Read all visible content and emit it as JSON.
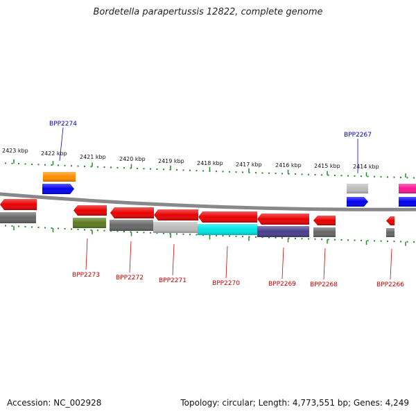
{
  "title": "Bordetella parapertussis 12822, complete genome",
  "footer": {
    "accession": "Accession: NC_002928",
    "summary": "Topology: circular; Length: 4,773,551 bp; Genes: 4,249"
  },
  "scale": {
    "labels": [
      "2423 kbp",
      "2422 kbp",
      "2421 kbp",
      "2420 kbp",
      "2419 kbp",
      "2418 kbp",
      "2417 kbp",
      "2416 kbp",
      "2415 kbp",
      "2414 kbp"
    ]
  },
  "genes": {
    "top": [
      {
        "name": "BPP2274",
        "color": "#0000cc"
      },
      {
        "name": "BPP2267",
        "color": "#0000cc"
      }
    ],
    "bottom": [
      {
        "name": "BPP2273",
        "color": "#cc0000"
      },
      {
        "name": "BPP2272",
        "color": "#cc0000"
      },
      {
        "name": "BPP2271",
        "color": "#cc0000"
      },
      {
        "name": "BPP2270",
        "color": "#cc0000"
      },
      {
        "name": "BPP2269",
        "color": "#cc0000"
      },
      {
        "name": "BPP2268",
        "color": "#cc0000"
      },
      {
        "name": "BPP2266",
        "color": "#cc0000"
      }
    ]
  },
  "colors": {
    "red": "#e80000",
    "blue": "#0000ee",
    "orange": "#ff8c00",
    "grey": "#666666",
    "lightgrey": "#bbbbbb",
    "olive": "#5a7a1e",
    "cyan": "#00e6e6",
    "slate": "#483d8b",
    "pink": "#ff1493",
    "tick": "#228b22",
    "backbone": "#888888"
  }
}
